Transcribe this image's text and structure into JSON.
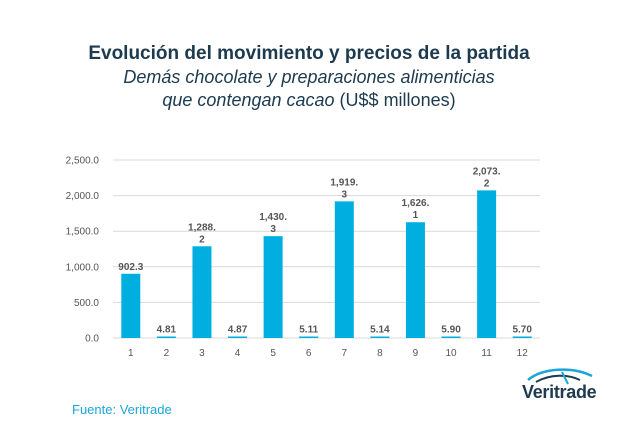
{
  "title": {
    "line1": "Evolución del movimiento y precios de la partida",
    "line2": "Demás chocolate y preparaciones alimenticias",
    "line3_italic": "que contengan cacao",
    "line3_unit": " (U$$ millones)"
  },
  "source": "Fuente: Veritrade",
  "logo": {
    "text": "Veritrade"
  },
  "colors": {
    "bar": "#00aee0",
    "grid": "#d9d9d9",
    "title": "#1d3a4f",
    "source": "#1aa6d9"
  },
  "chart_data": {
    "type": "bar",
    "categories": [
      "1",
      "2",
      "3",
      "4",
      "5",
      "6",
      "7",
      "8",
      "9",
      "10",
      "11",
      "12"
    ],
    "values": [
      902.3,
      4.81,
      1288.2,
      4.87,
      1430.3,
      5.11,
      1919.3,
      5.14,
      1626.1,
      5.9,
      2073.2,
      5.7
    ],
    "data_labels": [
      [
        "902.3"
      ],
      [
        "4.81"
      ],
      [
        "1,288.",
        "2"
      ],
      [
        "4.87"
      ],
      [
        "1,430.",
        "3"
      ],
      [
        "5.11"
      ],
      [
        "1,919.",
        "3"
      ],
      [
        "5.14"
      ],
      [
        "1,626.",
        "1"
      ],
      [
        "5.90"
      ],
      [
        "2,073.",
        "2"
      ],
      [
        "5.70"
      ]
    ],
    "yticks": [
      "0.0",
      "500.0",
      "1,000.0",
      "1,500.0",
      "2,000.0",
      "2,500.0"
    ],
    "ytick_values": [
      0,
      500,
      1000,
      1500,
      2000,
      2500
    ],
    "ylim": [
      0,
      2500
    ],
    "grid": true
  }
}
